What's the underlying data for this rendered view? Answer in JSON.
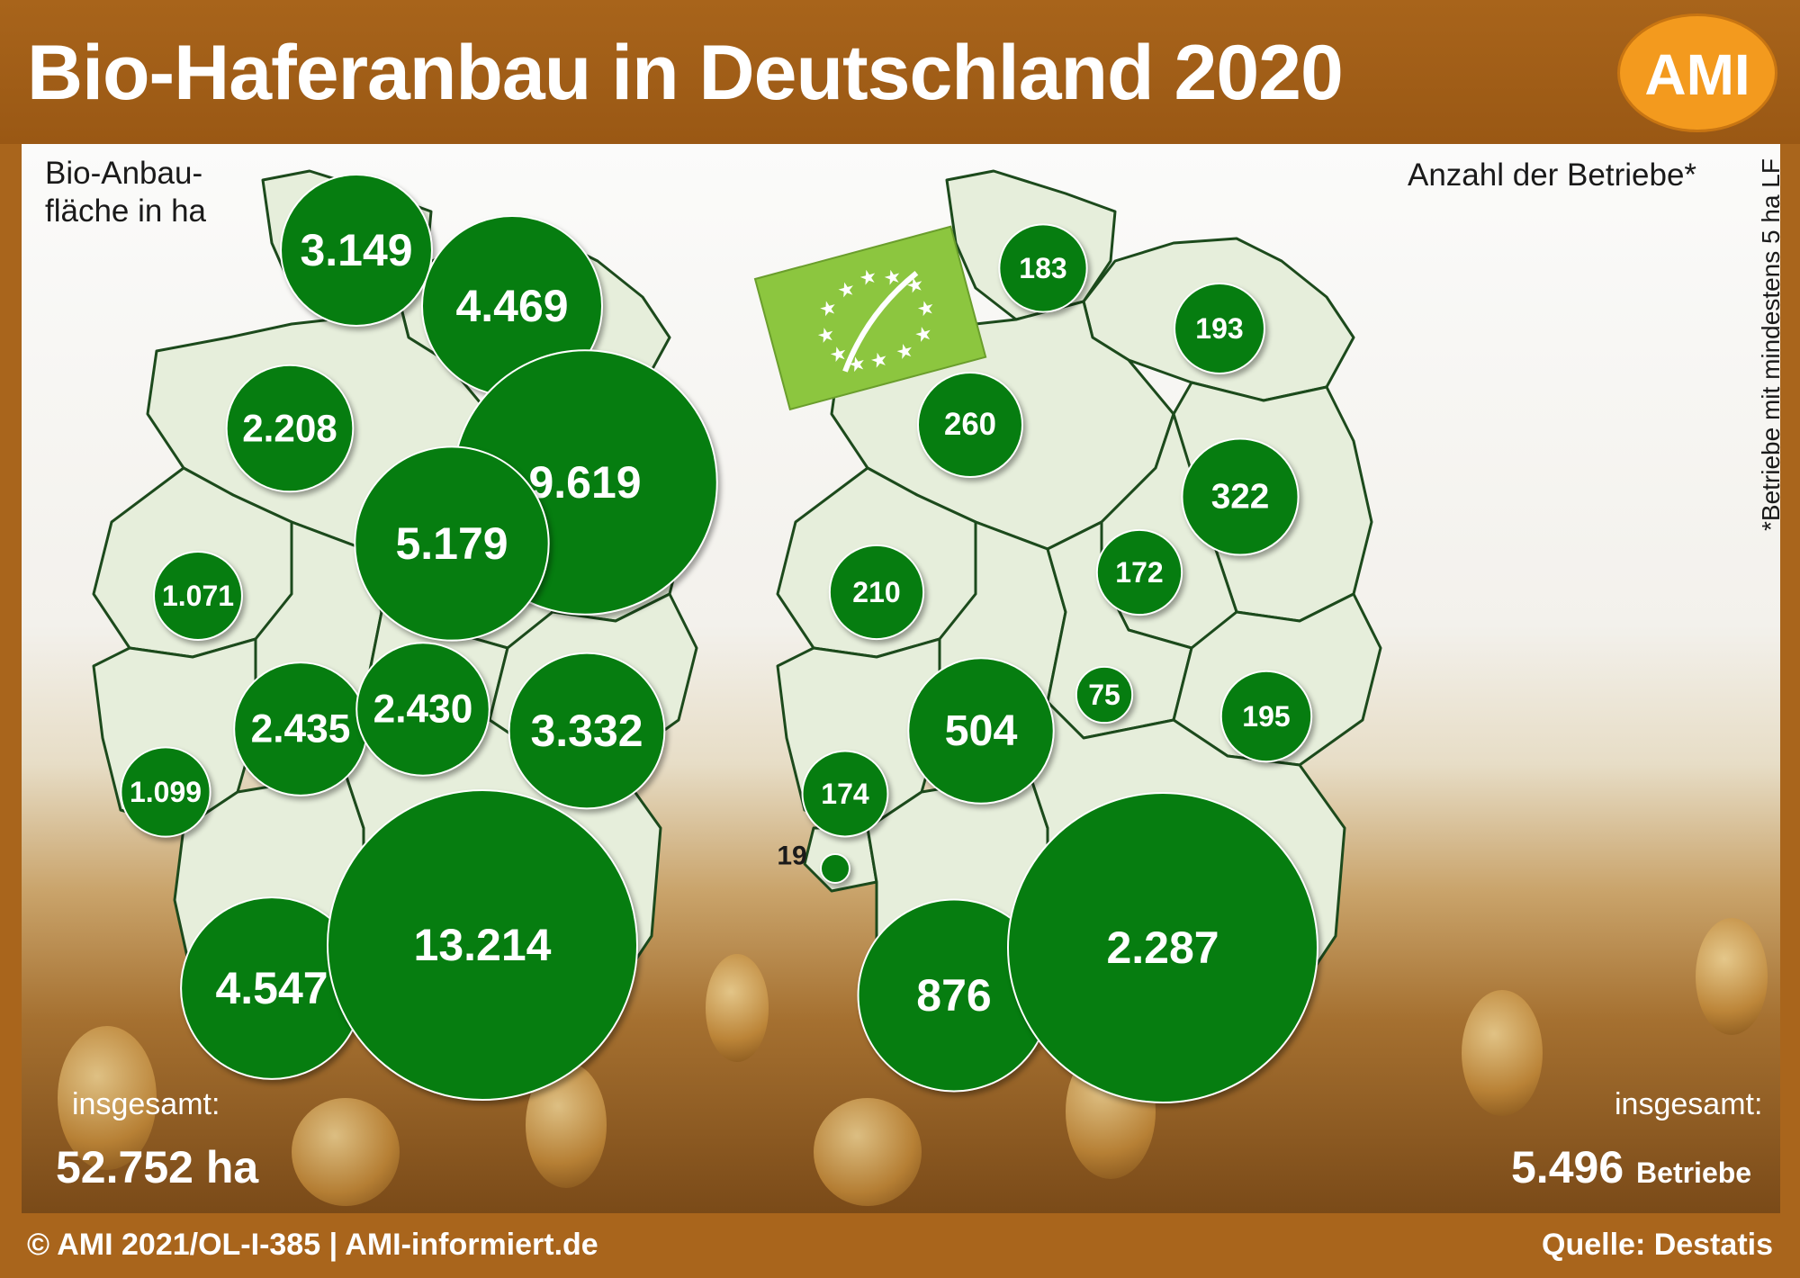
{
  "title": "Bio-Haferanbau in Deutschland 2020",
  "logo_text": "AMI",
  "left_map": {
    "legend": [
      "Bio-Anbau-",
      "fläche in ha"
    ],
    "total_label": "insgesamt:",
    "total_value": "52.752 ha",
    "bubbles": [
      {
        "state": "Schleswig-Holstein",
        "label": "3.149",
        "value": 3149
      },
      {
        "state": "Mecklenburg-Vorpommern",
        "label": "4.469",
        "value": 4469
      },
      {
        "state": "Niedersachsen",
        "label": "2.208",
        "value": 2208
      },
      {
        "state": "Brandenburg",
        "label": "9.619",
        "value": 9619
      },
      {
        "state": "Sachsen-Anhalt",
        "label": "5.179",
        "value": 5179
      },
      {
        "state": "Nordrhein-Westfalen",
        "label": "1.071",
        "value": 1071
      },
      {
        "state": "Hessen",
        "label": "2.435",
        "value": 2435
      },
      {
        "state": "Thüringen",
        "label": "2.430",
        "value": 2430
      },
      {
        "state": "Sachsen",
        "label": "3.332",
        "value": 3332
      },
      {
        "state": "Rheinland-Pfalz",
        "label": "1.099",
        "value": 1099
      },
      {
        "state": "Baden-Württemberg",
        "label": "4.547",
        "value": 4547
      },
      {
        "state": "Bayern",
        "label": "13.214",
        "value": 13214
      }
    ]
  },
  "right_map": {
    "legend": "Anzahl der Betriebe*",
    "footnote": "*Betriebe mit mindestens 5 ha LF",
    "total_label": "insgesamt:",
    "total_value": "5.496",
    "total_unit": "Betriebe",
    "bubbles": [
      {
        "state": "Schleswig-Holstein",
        "label": "183",
        "value": 183
      },
      {
        "state": "Mecklenburg-Vorpommern",
        "label": "193",
        "value": 193
      },
      {
        "state": "Niedersachsen",
        "label": "260",
        "value": 260
      },
      {
        "state": "Brandenburg",
        "label": "322",
        "value": 322
      },
      {
        "state": "Sachsen-Anhalt",
        "label": "172",
        "value": 172
      },
      {
        "state": "Nordrhein-Westfalen",
        "label": "210",
        "value": 210
      },
      {
        "state": "Hessen",
        "label": "504",
        "value": 504
      },
      {
        "state": "Thüringen",
        "label": "75",
        "value": 75
      },
      {
        "state": "Sachsen",
        "label": "195",
        "value": 195
      },
      {
        "state": "Rheinland-Pfalz",
        "label": "174",
        "value": 174
      },
      {
        "state": "Saarland",
        "label": "19",
        "value": 19
      },
      {
        "state": "Baden-Württemberg",
        "label": "876",
        "value": 876
      },
      {
        "state": "Bayern",
        "label": "2.287",
        "value": 2287
      }
    ]
  },
  "footer_left": "© AMI 2021/OL-I-385 | AMI-informiert.de",
  "footer_right": "Quelle: Destatis",
  "colors": {
    "bubble": "#067d10",
    "header": "#a8641b",
    "logo": "#f39a1e",
    "map_fill": "#e6eedb",
    "eu_logo": "#8cc63f"
  },
  "icons": [
    "eu-organic-logo-icon"
  ]
}
